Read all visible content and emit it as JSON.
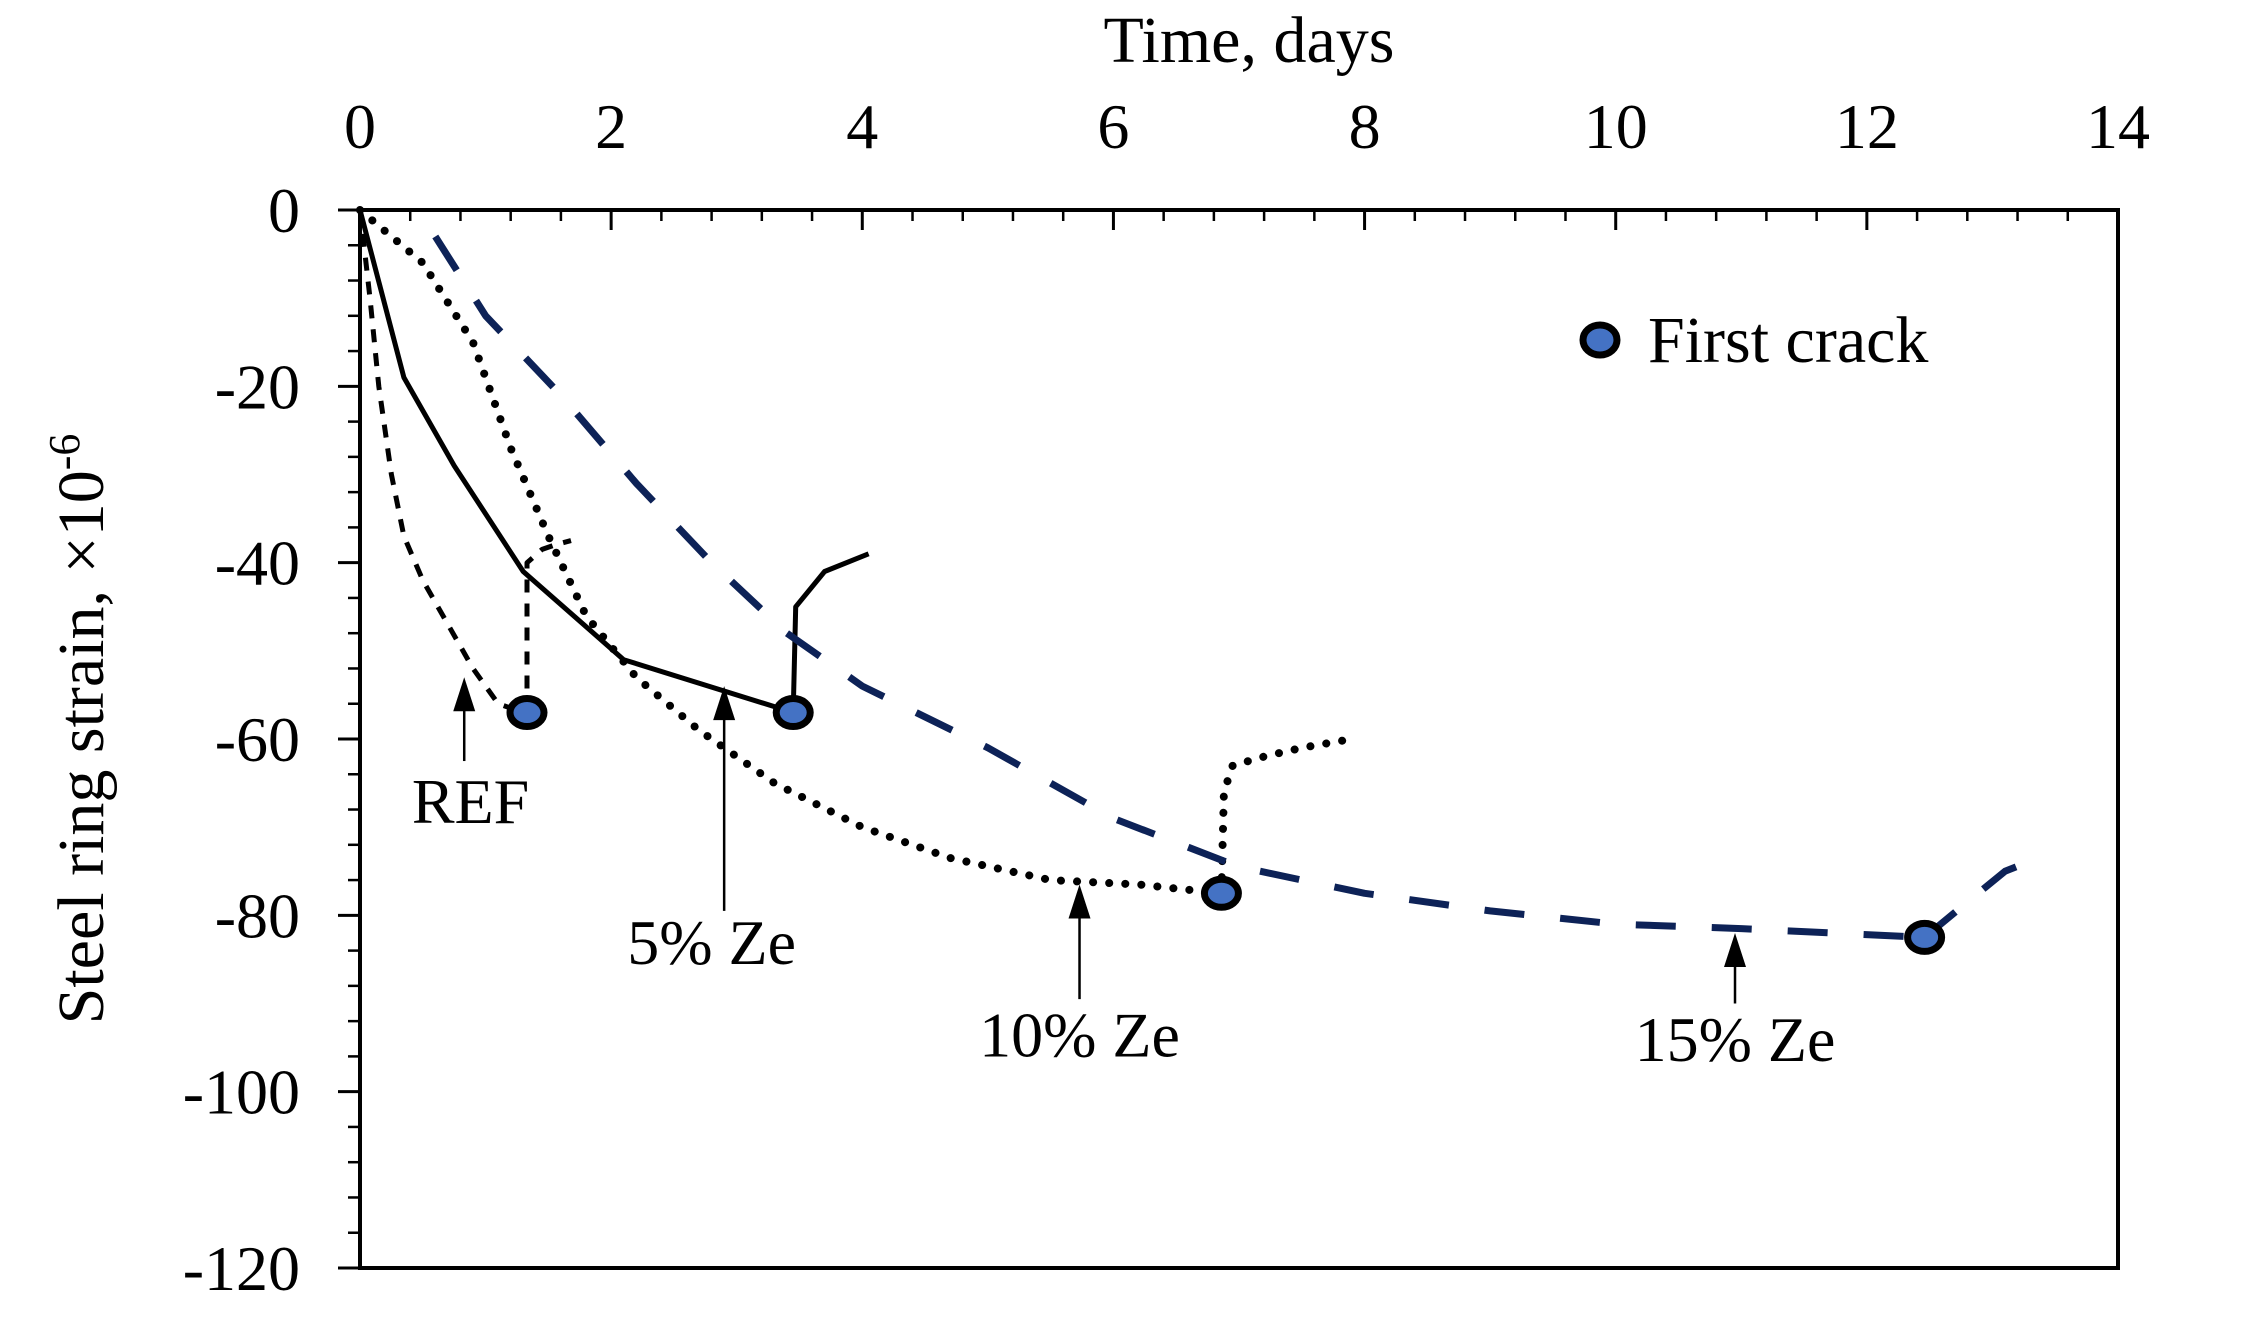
{
  "chart_data": {
    "type": "line",
    "xlabel": "Time, days",
    "ylabel": "Steel ring strain, ×10",
    "ylabel_exponent": "-6",
    "xlim": [
      0,
      14
    ],
    "ylim": [
      -120,
      0
    ],
    "x_ticks": [
      "0",
      "2",
      "4",
      "6",
      "8",
      "10",
      "12",
      "14"
    ],
    "y_ticks": [
      "0",
      "-20",
      "-40",
      "-60",
      "-80",
      "-100",
      "-120"
    ],
    "grid": false,
    "legend": {
      "position": "top-right",
      "label": "First crack",
      "marker_color": "#4472c4"
    },
    "series": [
      {
        "name": "REF",
        "style": "short-dash",
        "color": "#000000",
        "x": [
          0,
          0.08,
          0.15,
          0.25,
          0.35,
          0.5,
          0.7,
          0.9,
          1.1,
          1.3,
          1.33
        ],
        "y": [
          0,
          -10,
          -20,
          -30,
          -37,
          -42,
          -47,
          -52,
          -56,
          -57,
          -57
        ],
        "post_crack": {
          "x": [
            1.33,
            1.33,
            1.45,
            1.55,
            1.68
          ],
          "y": [
            -57,
            -40,
            -38.5,
            -38,
            -37.5
          ]
        },
        "first_crack": {
          "x": 1.33,
          "y": -57
        }
      },
      {
        "name": "5% Ze",
        "style": "solid",
        "color": "#000000",
        "x": [
          0,
          0.35,
          0.75,
          1.3,
          2.1,
          3.45
        ],
        "y": [
          0,
          -19,
          -29,
          -41,
          -51,
          -57
        ],
        "post_crack": {
          "x": [
            3.45,
            3.47,
            3.7,
            4.05
          ],
          "y": [
            -57,
            -45,
            -41,
            -39
          ]
        },
        "first_crack": {
          "x": 3.45,
          "y": -57
        }
      },
      {
        "name": "10% Ze",
        "style": "dotted",
        "color": "#000000",
        "x": [
          0,
          0.5,
          0.9,
          1.2,
          1.5,
          1.8,
          2.2,
          2.7,
          3.3,
          4,
          4.7,
          5.5,
          6.2,
          6.86
        ],
        "y": [
          0,
          -6,
          -15,
          -27,
          -37,
          -46,
          -53,
          -59,
          -65,
          -70,
          -73.5,
          -76,
          -76.5,
          -77.5
        ],
        "post_crack": {
          "x": [
            6.86,
            6.88,
            6.95,
            7.2,
            7.5,
            7.9
          ],
          "y": [
            -77.5,
            -66,
            -63,
            -62,
            -61,
            -60
          ]
        },
        "first_crack": {
          "x": 6.86,
          "y": -77.5
        }
      },
      {
        "name": "15% Ze",
        "style": "long-dash",
        "color": "#0d2257",
        "x": [
          0.6,
          1.0,
          1.6,
          2.2,
          2.8,
          3.4,
          4,
          5,
          6,
          7,
          8,
          9,
          10,
          11,
          12.46
        ],
        "y": [
          -3,
          -12,
          -21,
          -31,
          -40,
          -48,
          -54,
          -61,
          -69,
          -74.5,
          -77.5,
          -79.5,
          -81,
          -81.5,
          -82.5
        ],
        "post_crack": {
          "x": [
            12.46,
            12.8,
            13.1,
            13.45
          ],
          "y": [
            -82.5,
            -78.5,
            -75,
            -73
          ]
        },
        "first_crack": {
          "x": 12.46,
          "y": -82.5
        }
      }
    ],
    "annotations": [
      {
        "text": "REF",
        "arrow_x": 0.83,
        "arrow_y_from": -62.5,
        "arrow_y_to": -53,
        "text_x": 0.88,
        "text_y": -69.5
      },
      {
        "text": "5% Ze",
        "arrow_x": 2.9,
        "arrow_y_from": -79.5,
        "arrow_y_to": -54,
        "text_x": 2.8,
        "text_y": -85.5
      },
      {
        "text": "10% Ze",
        "arrow_x": 5.73,
        "arrow_y_from": -89.5,
        "arrow_y_to": -76.5,
        "text_x": 5.73,
        "text_y": -96
      },
      {
        "text": "15% Ze",
        "arrow_x": 10.95,
        "arrow_y_from": -90,
        "arrow_y_to": -82,
        "text_x": 10.95,
        "text_y": -96.5
      }
    ]
  }
}
